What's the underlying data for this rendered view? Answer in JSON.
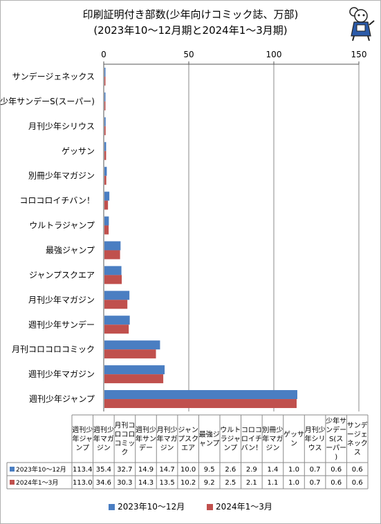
{
  "title": {
    "line1": "印刷証明付き部数(少年向けコミック誌、万部)",
    "line2": "(2023年10～12月期と2024年1～3月期)"
  },
  "colors": {
    "series1": "#4a7ec2",
    "series2": "#c0504d",
    "grid": "#888888"
  },
  "mascot_icon": "mascot-character-icon",
  "chart_data": {
    "type": "bar",
    "orientation": "horizontal",
    "xlim": [
      0,
      150
    ],
    "xticks": [
      0,
      50,
      100,
      150
    ],
    "grid": true,
    "legend_position": "bottom",
    "categories": [
      "週刊少年ジャンプ",
      "週刊少年マガジン",
      "月刊コロコロコミック",
      "週刊少年サンデー",
      "月刊少年マガジン",
      "ジャンプスクエア",
      "最強ジャンプ",
      "ウルトラジャンプ",
      "コロコロイチバン！",
      "別冊少年マガジン",
      "ゲッサン",
      "月刊少年シリウス",
      "少年サンデーS(スーパー)",
      "サンデージェネックス"
    ],
    "table_headers": [
      "週刊少年ジャンプ",
      "週刊少年マガジン",
      "月刊コロコロコミック",
      "週刊少年サンデー",
      "月刊少年マガジン",
      "ジャンプスクエア",
      "最強ジャンプ",
      "ウルトラジャンプ",
      "コロコロイチバン！",
      "別冊少年マガジン",
      "ゲッサン",
      "月刊少年シリウス",
      "少年サンデーS(スーパー)",
      "サンデージェネックス"
    ],
    "series": [
      {
        "name": "2023年10～12月",
        "values": [
          113.4,
          35.4,
          32.7,
          14.9,
          14.7,
          10.0,
          9.5,
          2.6,
          2.9,
          1.4,
          1.0,
          0.7,
          0.6,
          0.6
        ],
        "labels": [
          "113.4",
          "35.4",
          "32.7",
          "14.9",
          "14.7",
          "10.0",
          "9.5",
          "2.6",
          "2.9",
          "1.4",
          "1.0",
          "0.7",
          "0.6",
          "0.6"
        ]
      },
      {
        "name": "2024年1～3月",
        "values": [
          113.0,
          34.6,
          30.3,
          14.3,
          13.5,
          10.2,
          9.2,
          2.5,
          2.1,
          1.1,
          1.0,
          0.7,
          0.6,
          0.6
        ],
        "labels": [
          "113.0",
          "34.6",
          "30.3",
          "14.3",
          "13.5",
          "10.2",
          "9.2",
          "2.5",
          "2.1",
          "1.1",
          "1.0",
          "0.7",
          "0.6",
          "0.6"
        ]
      }
    ]
  }
}
